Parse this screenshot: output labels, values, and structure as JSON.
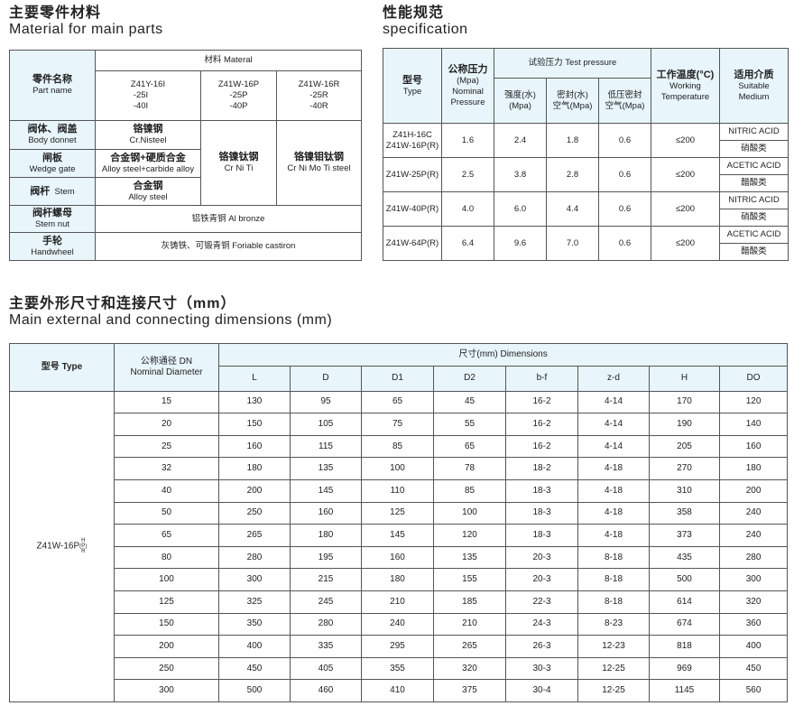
{
  "materials": {
    "title_cn": "主要零件材料",
    "title_en": "Material for main parts",
    "header_part_cn": "零件名称",
    "header_part_en": "Part name",
    "header_material": "材料 Materal",
    "models": [
      [
        "Z41Y-16I",
        "-25I",
        "-40I"
      ],
      [
        "Z41W-16P",
        "-25P",
        "-40P"
      ],
      [
        "Z41W-16R",
        "-25R",
        "-40R"
      ]
    ],
    "rows": [
      {
        "cn": "阀体、阀盖",
        "en": "Body donnet"
      },
      {
        "cn": "闸板",
        "en": "Wedge gate"
      },
      {
        "cn": "阀杆",
        "en": "Stem"
      },
      {
        "cn": "阀杆螺母",
        "en": "Stem nut"
      },
      {
        "cn": "手轮",
        "en": "Handwheel"
      }
    ],
    "body_col1": {
      "cn": "铬镍钢",
      "en": "Cr.Nisteel"
    },
    "gate_col1": {
      "cn": "合金钢+硬质合金",
      "en": "Alloy steel+carbide alloy"
    },
    "stem_col1": {
      "cn": "合金钢",
      "en": "Alloy steel"
    },
    "col2": {
      "cn": "铬镍钛钢",
      "en": "Cr Ni Ti"
    },
    "col3": {
      "cn": "铬镍钼钛钢",
      "en": "Cr Ni Mo Ti steel"
    },
    "stem_nut": "铝铁青铜 Al bronze",
    "handwheel": "灰铸铁、可锻青铜 Foriable castiron"
  },
  "specification": {
    "title_cn": "性能规范",
    "title_en": "specification",
    "headers": {
      "type_cn": "型号",
      "type_en": "Type",
      "np_cn": "公称压力",
      "np_unit": "(Mpa)",
      "np_en1": "Nominal",
      "np_en2": "Pressure",
      "test": "试验压力 Test pressure",
      "strength_cn": "强度(水)",
      "strength_unit": "(Mpa)",
      "seal_cn": "密封(水)",
      "seal_unit": "空气(Mpa)",
      "low_cn": "低压密封",
      "low_unit": "空气(Mpa)",
      "temp_cn": "工作温度(°C)",
      "temp_en1": "Working",
      "temp_en2": "Temperature",
      "medium_cn": "适用介质",
      "medium_en1": "Suitable",
      "medium_en2": "Medium"
    },
    "rows": [
      {
        "type": "Z41H-16C",
        "type2": "Z41W-16P(R)",
        "np": "1.6",
        "strength": "2.4",
        "seal": "1.8",
        "low": "0.6",
        "temp": "≤200",
        "medium_en": "NITRIC ACID",
        "medium_cn": "硝酸类"
      },
      {
        "type": "Z41W-25P(R)",
        "type2": "",
        "np": "2.5",
        "strength": "3.8",
        "seal": "2.8",
        "low": "0.6",
        "temp": "≤200",
        "medium_en": "ACETIC ACID",
        "medium_cn": "醋酸类"
      },
      {
        "type": "Z41W-40P(R)",
        "type2": "",
        "np": "4.0",
        "strength": "6.0",
        "seal": "4.4",
        "low": "0.6",
        "temp": "≤200",
        "medium_en": "NITRIC ACID",
        "medium_cn": "硝酸类"
      },
      {
        "type": "Z41W-64P(R)",
        "type2": "",
        "np": "6.4",
        "strength": "9.6",
        "seal": "7.0",
        "low": "0.6",
        "temp": "≤200",
        "medium_en": "ACETIC ACID",
        "medium_cn": "醋酸类"
      }
    ]
  },
  "dimensions": {
    "title_cn": "主要外形尺寸和连接尺寸（mm）",
    "title_en": "Main external and connecting dimensions (mm)",
    "header_type": "型号 Type",
    "header_dn_cn": "公称通径 DN",
    "header_dn_en": "Nominal Diameter",
    "header_dims": "尺寸(mm) Dimensions",
    "columns": [
      "L",
      "D",
      "D1",
      "D2",
      "b-f",
      "z-d",
      "H",
      "DO"
    ],
    "type_value": "Z41W-16P",
    "type_suffix": [
      "H",
      "P",
      "R"
    ],
    "rows": [
      [
        "15",
        "130",
        "95",
        "65",
        "45",
        "16-2",
        "4-14",
        "170",
        "120"
      ],
      [
        "20",
        "150",
        "105",
        "75",
        "55",
        "16-2",
        "4-14",
        "190",
        "140"
      ],
      [
        "25",
        "160",
        "115",
        "85",
        "65",
        "16-2",
        "4-14",
        "205",
        "160"
      ],
      [
        "32",
        "180",
        "135",
        "100",
        "78",
        "18-2",
        "4-18",
        "270",
        "180"
      ],
      [
        "40",
        "200",
        "145",
        "110",
        "85",
        "18-3",
        "4-18",
        "310",
        "200"
      ],
      [
        "50",
        "250",
        "160",
        "125",
        "100",
        "18-3",
        "4-18",
        "358",
        "240"
      ],
      [
        "65",
        "265",
        "180",
        "145",
        "120",
        "18-3",
        "4-18",
        "373",
        "240"
      ],
      [
        "80",
        "280",
        "195",
        "160",
        "135",
        "20-3",
        "8-18",
        "435",
        "280"
      ],
      [
        "100",
        "300",
        "215",
        "180",
        "155",
        "20-3",
        "8-18",
        "500",
        "300"
      ],
      [
        "125",
        "325",
        "245",
        "210",
        "185",
        "22-3",
        "8-18",
        "614",
        "320"
      ],
      [
        "150",
        "350",
        "280",
        "240",
        "210",
        "24-3",
        "8-23",
        "674",
        "360"
      ],
      [
        "200",
        "400",
        "335",
        "295",
        "265",
        "26-3",
        "12-23",
        "818",
        "400"
      ],
      [
        "250",
        "450",
        "405",
        "355",
        "320",
        "30-3",
        "12-25",
        "969",
        "450"
      ],
      [
        "300",
        "500",
        "460",
        "410",
        "375",
        "30-4",
        "12-25",
        "1145",
        "560"
      ]
    ]
  },
  "colors": {
    "header_bg": "#e8f5fb",
    "border": "#555555"
  }
}
